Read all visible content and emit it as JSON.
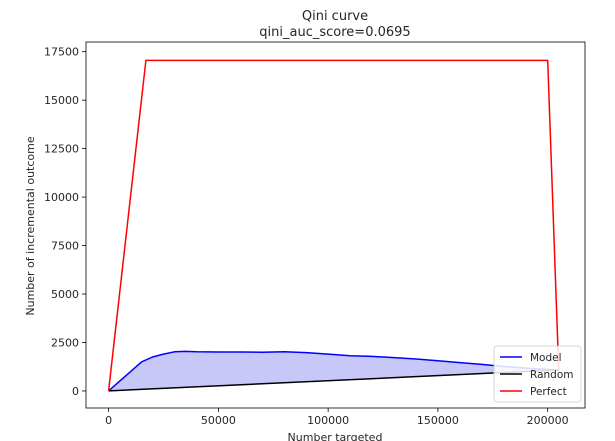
{
  "chart_data": {
    "type": "line",
    "title": "Qini curve",
    "subtitle": "qini_auc_score=0.0695",
    "xlabel": "Number targeted",
    "ylabel": "Number of incremental outcome",
    "xlim": [
      -10300,
      217000
    ],
    "ylim": [
      -880,
      18000
    ],
    "xticks": [
      "0",
      "50000",
      "100000",
      "150000",
      "200000"
    ],
    "yticks": [
      "0",
      "2500",
      "5000",
      "7500",
      "10000",
      "12500",
      "15000",
      "17500"
    ],
    "grid": false,
    "legend_position": "lower-right",
    "series": [
      {
        "name": "Model",
        "color": "#0000ff",
        "fill": "#c8c8f8",
        "x": [
          0,
          5000,
          10000,
          15000,
          20000,
          25000,
          30000,
          35000,
          40000,
          50000,
          60000,
          70000,
          80000,
          90000,
          100000,
          110000,
          120000,
          130000,
          140000,
          150000,
          160000,
          170000,
          180000,
          190000,
          200000,
          205000
        ],
        "y": [
          0,
          500,
          1000,
          1500,
          1750,
          1900,
          2020,
          2040,
          2020,
          2010,
          2010,
          2000,
          2020,
          1980,
          1900,
          1820,
          1780,
          1720,
          1650,
          1560,
          1460,
          1370,
          1260,
          1180,
          1110,
          1080
        ]
      },
      {
        "name": "Random",
        "color": "#000000",
        "x": [
          0,
          205000
        ],
        "y": [
          0,
          1080
        ]
      },
      {
        "name": "Perfect",
        "color": "#ff0000",
        "x": [
          0,
          17000,
          200000,
          205000
        ],
        "y": [
          0,
          17050,
          17050,
          1080
        ]
      }
    ]
  }
}
